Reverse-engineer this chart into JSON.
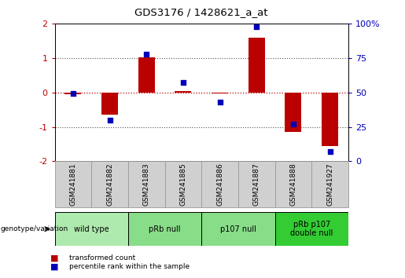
{
  "title": "GDS3176 / 1428621_a_at",
  "samples": [
    "GSM241881",
    "GSM241882",
    "GSM241883",
    "GSM241885",
    "GSM241886",
    "GSM241887",
    "GSM241888",
    "GSM241927"
  ],
  "red_bars": [
    -0.05,
    -0.65,
    1.02,
    0.05,
    -0.02,
    1.6,
    -1.15,
    -1.55
  ],
  "blue_dots_pct": [
    49,
    30,
    78,
    57,
    43,
    98,
    27,
    7
  ],
  "groups": [
    {
      "label": "wild type",
      "start": 0,
      "end": 2,
      "color": "#aeeaae"
    },
    {
      "label": "pRb null",
      "start": 2,
      "end": 4,
      "color": "#88dd88"
    },
    {
      "label": "p107 null",
      "start": 4,
      "end": 6,
      "color": "#88dd88"
    },
    {
      "label": "pRb p107\ndouble null",
      "start": 6,
      "end": 8,
      "color": "#33cc33"
    }
  ],
  "ylim_left": [
    -2,
    2
  ],
  "ylim_right": [
    0,
    100
  ],
  "yticks_left": [
    -2,
    -1,
    0,
    1,
    2
  ],
  "yticks_right": [
    0,
    25,
    50,
    75,
    100
  ],
  "red_color": "#bb0000",
  "blue_color": "#0000bb",
  "dotline_color": "#555555",
  "bar_width": 0.45,
  "legend_labels": [
    "transformed count",
    "percentile rank within the sample"
  ],
  "legend_colors": [
    "#bb0000",
    "#0000bb"
  ],
  "label_text": "genotype/variation",
  "header_color": "#444444",
  "sample_bg_color": "#d0d0d0",
  "sample_sep_color": "#999999"
}
